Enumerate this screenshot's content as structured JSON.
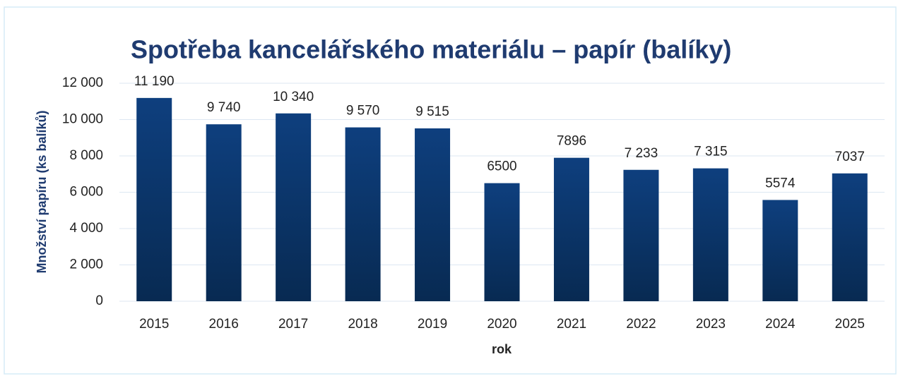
{
  "chart_data": {
    "type": "bar",
    "title": "Spotřeba kancelářského materiálu – papír (balíky)",
    "xlabel": "rok",
    "ylabel": "Množství papíru (ks balíků)",
    "categories": [
      "2015",
      "2016",
      "2017",
      "2018",
      "2019",
      "2020",
      "2021",
      "2022",
      "2023",
      "2024",
      "2025"
    ],
    "values": [
      11190,
      9740,
      10340,
      9570,
      9515,
      6500,
      7896,
      7233,
      7315,
      5574,
      7037
    ],
    "value_labels": [
      "11 190",
      "9 740",
      "10 340",
      "9 570",
      "9 515",
      "6500",
      "7896",
      "7 233",
      "7 315",
      "5574",
      "7037"
    ],
    "color": "#0d3a73",
    "ylim": [
      0,
      12000
    ],
    "yticks": [
      0,
      {
        "value": 2000,
        "label": "2 000"
      },
      {
        "value": 4000,
        "label": "4 000"
      },
      {
        "value": 6000,
        "label": "6 000"
      },
      {
        "value": 8000,
        "label": "8 000"
      },
      {
        "value": 10000,
        "label": "10 000"
      },
      {
        "value": 12000,
        "label": "12 000"
      }
    ],
    "grid": true
  }
}
